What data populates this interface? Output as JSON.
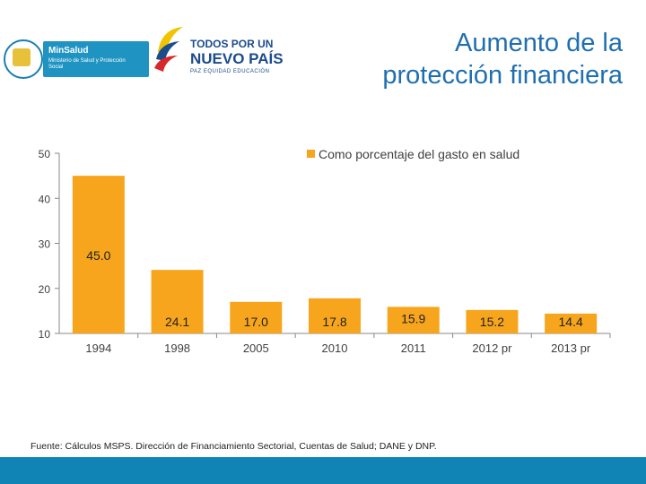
{
  "header": {
    "title_line1": "Aumento de la",
    "title_line2": "protección financiera",
    "logo_minsalud": {
      "title": "MinSalud",
      "subtitle": "Ministerio de Salud y Protección Social"
    },
    "logo_gobierno": {
      "line1": "TODOS POR UN",
      "line2": "NUEVO PAÍS",
      "line3": "PAZ  EQUIDAD  EDUCACIÓN"
    }
  },
  "chart_data": {
    "type": "bar",
    "categories": [
      "1994",
      "1998",
      "2005",
      "2010",
      "2011",
      "2012 pr",
      "2013 pr"
    ],
    "series": [
      {
        "name": "Como porcentaje del gasto en salud",
        "values": [
          45.0,
          24.1,
          17.0,
          17.8,
          15.9,
          15.2,
          14.4
        ],
        "labels": [
          "45.0",
          "24.1",
          "17.0",
          "17.8",
          "15.9",
          "15.2",
          "14.4"
        ]
      }
    ],
    "ylim": [
      10,
      50
    ],
    "yticks": [
      10,
      20,
      30,
      40,
      50
    ],
    "legend_position": "top-right",
    "grid": false,
    "bar_color": "#f7a51c"
  },
  "footer": {
    "source": "Fuente: Cálculos MSPS. Dirección de Financiamiento Sectorial, Cuentas de Salud; DANE y DNP."
  },
  "colors": {
    "title": "#1f6fb0",
    "band": "#0f84b5",
    "bar": "#f7a51c"
  }
}
